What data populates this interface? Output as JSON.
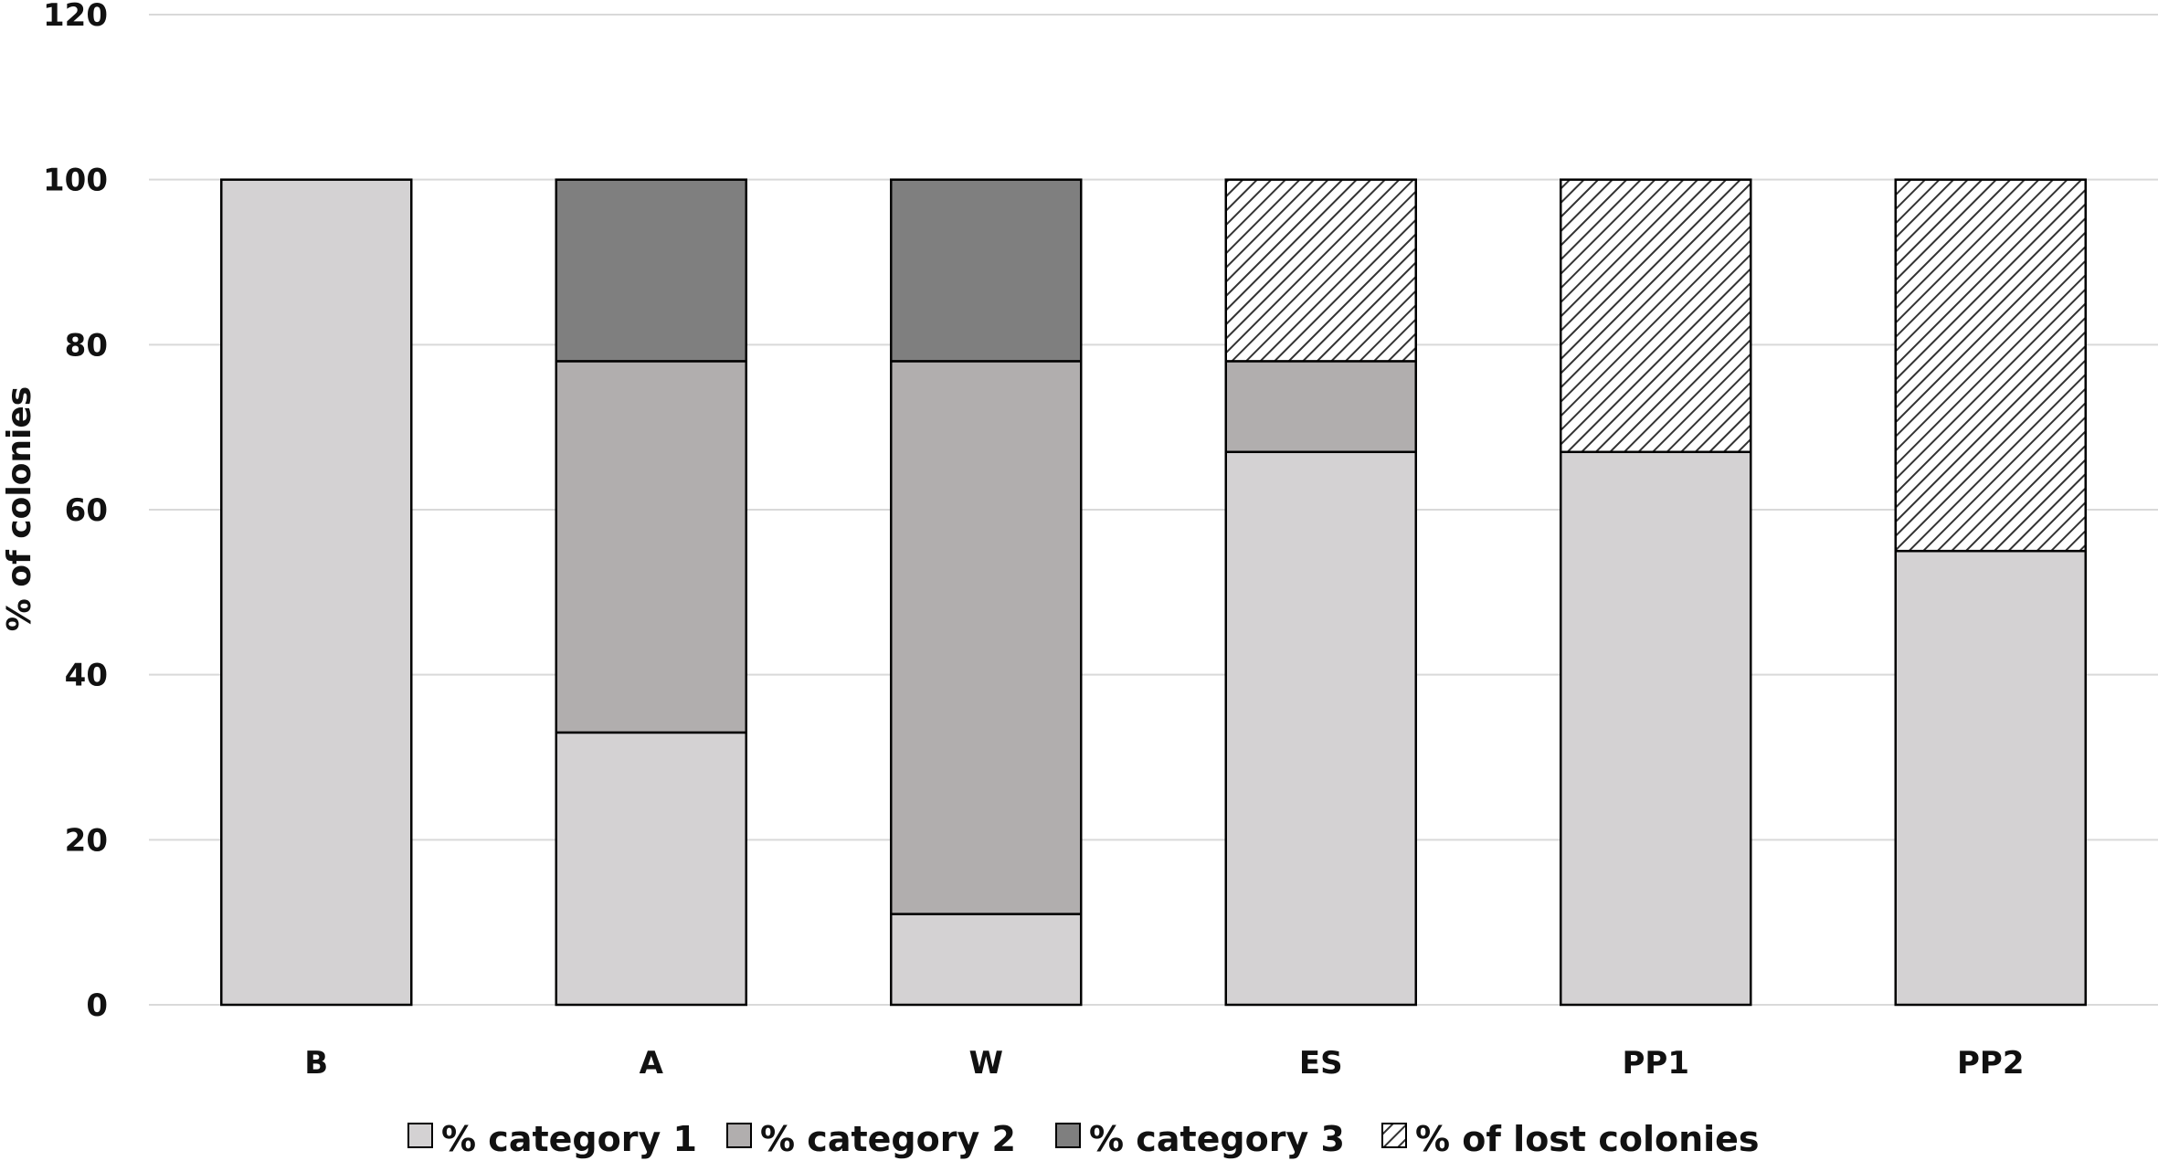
{
  "chart_data": {
    "type": "bar",
    "stacked": true,
    "categories": [
      "B",
      "A",
      "W",
      "ES",
      "PP1",
      "PP2"
    ],
    "series": [
      {
        "name": "% category 1",
        "values": [
          100,
          33,
          11,
          67,
          67,
          55
        ],
        "color": "#d4d2d3",
        "pattern": "solid"
      },
      {
        "name": "% category 2",
        "values": [
          0,
          45,
          67,
          11,
          0,
          0
        ],
        "color": "#b1aeae",
        "pattern": "solid"
      },
      {
        "name": "% category 3",
        "values": [
          0,
          22,
          22,
          0,
          0,
          0
        ],
        "color": "#7f7f7f",
        "pattern": "solid"
      },
      {
        "name": "% of lost colonies",
        "values": [
          0,
          0,
          0,
          22,
          33,
          45
        ],
        "color": "#444444",
        "pattern": "diagonal-hatch"
      }
    ],
    "ylabel": "% of colonies",
    "xlabel": "",
    "title": "",
    "ylim": [
      0,
      120
    ],
    "yticks": [
      0,
      20,
      40,
      60,
      80,
      100,
      120
    ],
    "grid": true,
    "legend_position": "bottom"
  }
}
